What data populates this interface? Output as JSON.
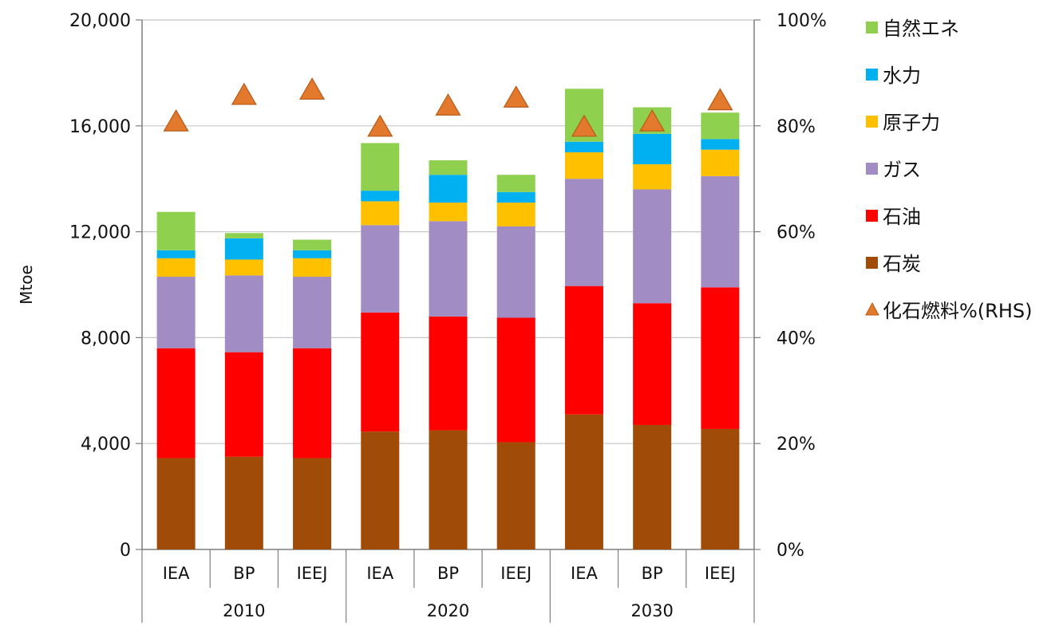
{
  "chart_data": {
    "type": "bar",
    "stacked": true,
    "ylabel": "Mtoe",
    "ylim": [
      0,
      20000
    ],
    "y_ticks": [
      "0",
      "4,000",
      "8,000",
      "12,000",
      "16,000",
      "20,000"
    ],
    "y2lim": [
      0,
      100
    ],
    "y2_ticks": [
      "0%",
      "20%",
      "40%",
      "60%",
      "80%",
      "100%"
    ],
    "grid": true,
    "legend_position": "right",
    "groups": [
      "2010",
      "2020",
      "2030"
    ],
    "categories": [
      "IEA",
      "BP",
      "IEEJ",
      "IEA",
      "BP",
      "IEEJ",
      "IEA",
      "BP",
      "IEEJ"
    ],
    "series": [
      {
        "name": "石炭",
        "color": "#a04c08",
        "values": [
          3450,
          3500,
          3450,
          4450,
          4500,
          4050,
          5100,
          4700,
          4550
        ]
      },
      {
        "name": "石油",
        "color": "#ff0000",
        "values": [
          4150,
          3950,
          4150,
          4500,
          4300,
          4700,
          4850,
          4600,
          5350
        ]
      },
      {
        "name": "ガス",
        "color": "#a18cc3",
        "values": [
          2700,
          2900,
          2700,
          3300,
          3600,
          3450,
          4050,
          4300,
          4200
        ]
      },
      {
        "name": "原子力",
        "color": "#ffc000",
        "values": [
          700,
          600,
          700,
          900,
          700,
          900,
          1000,
          950,
          1000
        ]
      },
      {
        "name": "水力",
        "color": "#00b0f0",
        "values": [
          300,
          800,
          300,
          400,
          1050,
          400,
          400,
          1150,
          400
        ]
      },
      {
        "name": "自然エネ",
        "color": "#8fd14f",
        "values": [
          1450,
          200,
          400,
          1800,
          550,
          650,
          2000,
          1000,
          1000
        ]
      },
      {
        "name": "化石燃料%(RHS)",
        "color": "#e2792c",
        "type": "scatter",
        "marker": "triangle",
        "axis": "right",
        "values": [
          81,
          86,
          87,
          80,
          84,
          85.5,
          80,
          81,
          85
        ]
      }
    ]
  }
}
